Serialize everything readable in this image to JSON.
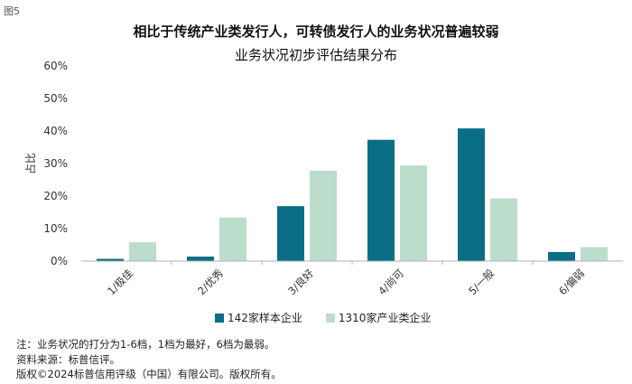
{
  "figure_label": "图5",
  "chart_data": {
    "type": "bar",
    "title": "相比于传统产业类发行人，可转债发行人的业务状况普遍较弱",
    "subtitle": "业务状况初步评估结果分布",
    "ylabel": "占比",
    "xlabel": "",
    "categories": [
      "1/极佳",
      "2/优秀",
      "3/良好",
      "4/尚可",
      "5/一般",
      "6/偏弱"
    ],
    "series": [
      {
        "name": "142家样本企业",
        "color": "#0a6e86",
        "values": [
          0.7,
          1.4,
          16.9,
          37.3,
          40.8,
          2.8
        ]
      },
      {
        "name": "1310家产业类企业",
        "color": "#bcdccc",
        "values": [
          5.8,
          13.4,
          27.8,
          29.4,
          19.3,
          4.3
        ]
      }
    ],
    "ylim": [
      0,
      60
    ],
    "yticks": [
      "0%",
      "10%",
      "20%",
      "30%",
      "40%",
      "50%",
      "60%"
    ],
    "grid": false,
    "legend_position": "bottom"
  },
  "notes": [
    "注：业务状况的打分为1-6档，1档为最好，6档为最弱。",
    "资料来源：标普信评。",
    "版权©2024标普信用评级（中国）有限公司。版权所有。"
  ]
}
